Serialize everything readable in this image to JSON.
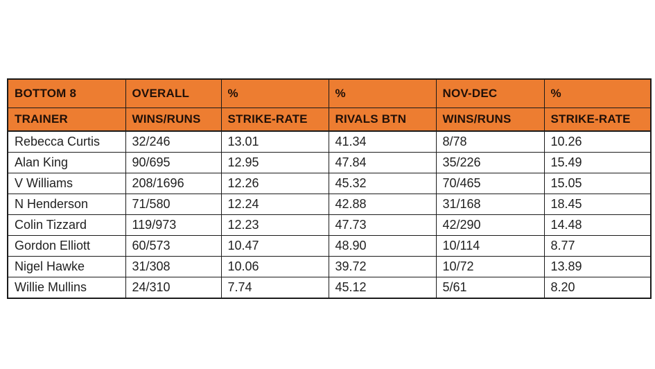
{
  "chart_data": {
    "type": "table",
    "header_rows": [
      [
        "BOTTOM 8",
        "OVERALL",
        "%",
        "%",
        "NOV-DEC",
        "%"
      ],
      [
        "TRAINER",
        "WINS/RUNS",
        "STRIKE-RATE",
        "RIVALS BTN",
        "WINS/RUNS",
        "STRIKE-RATE"
      ]
    ],
    "rows": [
      [
        "Rebecca Curtis",
        "32/246",
        "13.01",
        "41.34",
        "8/78",
        "10.26"
      ],
      [
        "Alan King",
        "90/695",
        "12.95",
        "47.84",
        "35/226",
        "15.49"
      ],
      [
        "V Williams",
        "208/1696",
        "12.26",
        "45.32",
        "70/465",
        "15.05"
      ],
      [
        "N Henderson",
        "71/580",
        "12.24",
        "42.88",
        "31/168",
        "18.45"
      ],
      [
        "Colin Tizzard",
        "119/973",
        "12.23",
        "47.73",
        "42/290",
        "14.48"
      ],
      [
        "Gordon Elliott",
        "60/573",
        "10.47",
        "48.90",
        "10/114",
        "8.77"
      ],
      [
        "Nigel Hawke",
        "31/308",
        "10.06",
        "39.72",
        "10/72",
        "13.89"
      ],
      [
        "Willie Mullins",
        "24/310",
        "7.74",
        "45.12",
        "5/61",
        "8.20"
      ]
    ],
    "colors": {
      "header_bg": "#ED7D31",
      "header_text": "#201008",
      "body_text": "#1f1f1f",
      "border": "#1a1a1a",
      "background": "#ffffff"
    },
    "legend": "none",
    "grid": "all-cell-borders"
  }
}
